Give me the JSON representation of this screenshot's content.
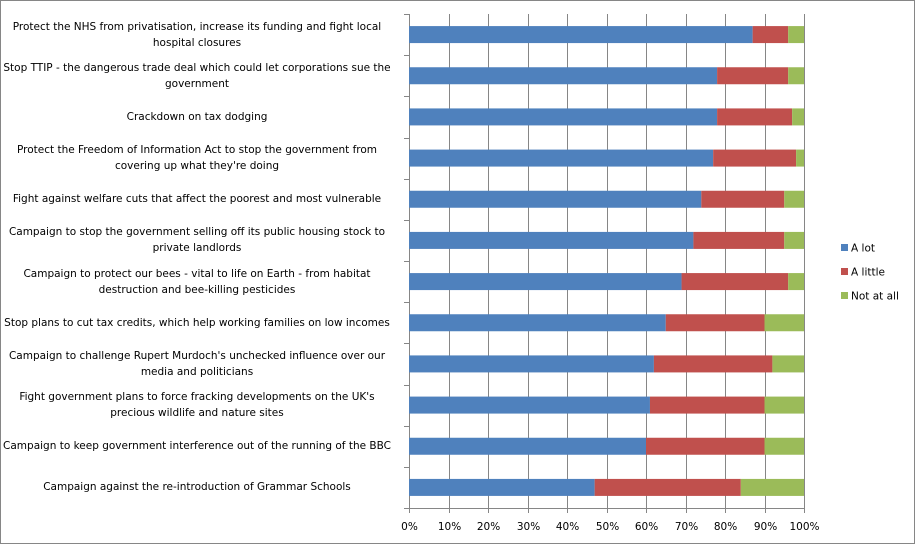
{
  "chart_data": {
    "type": "bar",
    "orientation": "horizontal",
    "stacked": "percent",
    "title": "",
    "xlabel": "",
    "ylabel": "",
    "xlim": [
      0,
      100
    ],
    "x_ticks": [
      "0%",
      "10%",
      "20%",
      "30%",
      "40%",
      "50%",
      "60%",
      "70%",
      "80%",
      "90%",
      "100%"
    ],
    "grid": "vertical",
    "legend_position": "right",
    "categories": [
      "Protect the NHS from privatisation, increase its funding and fight local hospital closures",
      "Stop TTIP - the dangerous trade deal which could let corporations sue the government",
      "Crackdown on tax dodging",
      "Protect the Freedom of Information Act to stop the government from covering up what they're doing",
      "Fight against welfare cuts that affect the poorest and most vulnerable",
      "Campaign to stop the government selling off its public housing stock to private landlords",
      "Campaign to protect our bees - vital to life on Earth - from habitat destruction and bee-killing pesticides",
      "Stop plans to cut tax credits, which help working families on low incomes",
      "Campaign to challenge Rupert Murdoch's unchecked influence over our media and politicians",
      "Fight government plans to force fracking developments on the UK's precious wildlife and nature sites",
      "Campaign to keep government interference out of the running of the BBC",
      "Campaign against the re-introduction of Grammar Schools"
    ],
    "series": [
      {
        "name": "A lot",
        "color": "#4F81BD",
        "values": [
          87,
          78,
          78,
          77,
          74,
          72,
          69,
          65,
          62,
          61,
          60,
          47
        ]
      },
      {
        "name": "A little",
        "color": "#C0504D",
        "values": [
          9,
          18,
          19,
          21,
          21,
          23,
          27,
          25,
          30,
          29,
          30,
          37
        ]
      },
      {
        "name": "Not at all",
        "color": "#9BBB59",
        "values": [
          4,
          4,
          3,
          2,
          5,
          5,
          4,
          10,
          8,
          10,
          10,
          16
        ]
      }
    ]
  }
}
